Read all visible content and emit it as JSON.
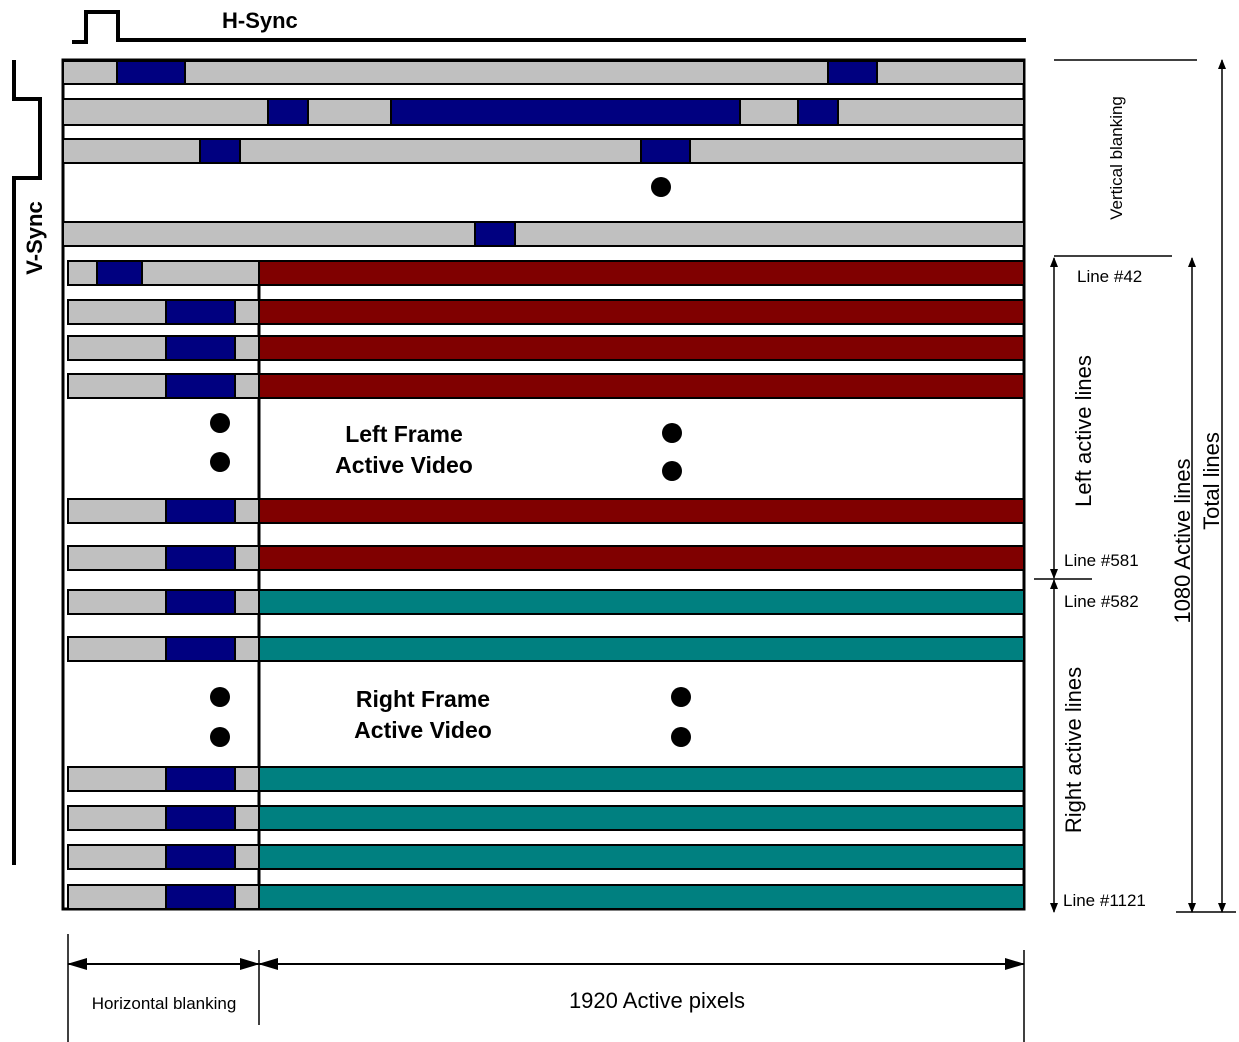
{
  "diagram": {
    "hsync_label": "H-Sync",
    "vsync_label": "V-Sync",
    "vertical_blanking_label": "Vertical blanking",
    "left_frame_line1": "Left Frame",
    "left_frame_line2": "Active Video",
    "right_frame_line1": "Right Frame",
    "right_frame_line2": "Active Video",
    "line_42": "Line #42",
    "line_581": "Line #581",
    "line_582": "Line #582",
    "line_1121": "Line #1121",
    "left_active_lines": "Left active lines",
    "right_active_lines": "Right active lines",
    "active_lines_1080": "1080 Active lines",
    "total_lines": "Total lines",
    "horizontal_blanking": "Horizontal blanking",
    "active_pixels": "1920 Active pixels"
  },
  "colors": {
    "blanking_gray": "#c0c0c0",
    "sync_blue": "#000080",
    "left_frame_red": "#800000",
    "right_frame_teal": "#008080"
  }
}
